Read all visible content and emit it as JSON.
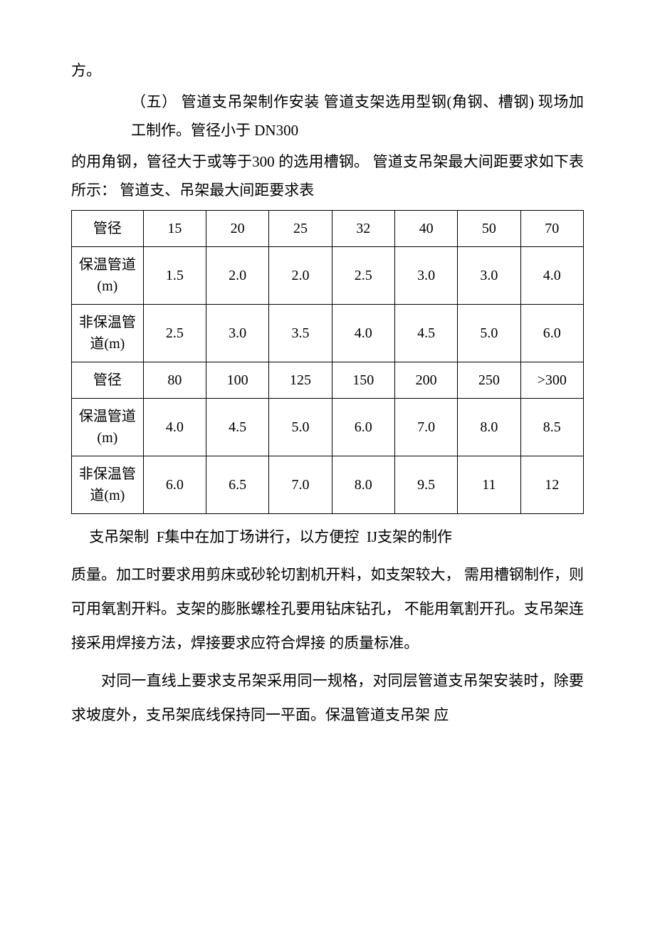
{
  "text": {
    "p0": "方。",
    "p1": "（五）  管道支吊架制作安装 管道支架选用型钢(角钢、槽钢) 现场加工制作。管径小于 DN300",
    "p2": "的用角钢，管径大于或等于300 的选用槽钢。 管道支吊架最大间距要求如下表所示：  管道支、吊架最大间距要求表",
    "p3a": "支吊架制",
    "p3b": "F集中在加丁场讲行，以方便控",
    "p3c": "IJ支架的制作",
    "p4": "质量。加工时要求用剪床或砂轮切割机开料，如支架较大， 需用槽钢制作，则可用氧割开料。支架的膨胀螺栓孔要用钻床钻孔， 不能用氧割开孔。支吊架连接采用焊接方法，焊接要求应符合焊接 的质量标准。",
    "p5": "对同一直线上要求支吊架采用同一规格，对同层管道支吊架安装时，除要求坡度外，支吊架底线保持同一平面。保温管道支吊架 应"
  },
  "table": {
    "rows": [
      {
        "label": "管径",
        "vals": [
          "15",
          "20",
          "25",
          "32",
          "40",
          "50",
          "70"
        ],
        "tall": false
      },
      {
        "label": "保温管道(m)",
        "vals": [
          "1.5",
          "2.0",
          "2.0",
          "2.5",
          "3.0",
          "3.0",
          "4.0"
        ],
        "tall": true
      },
      {
        "label": "非保温管道(m)",
        "vals": [
          "2.5",
          "3.0",
          "3.5",
          "4.0",
          "4.5",
          "5.0",
          "6.0"
        ],
        "tall": true
      },
      {
        "label": "管径",
        "vals": [
          "80",
          "100",
          "125",
          "150",
          "200",
          "250",
          ">300"
        ],
        "tall": false
      },
      {
        "label": "保温管道(m)",
        "vals": [
          "4.0",
          "4.5",
          "5.0",
          "6.0",
          "7.0",
          "8.0",
          "8.5"
        ],
        "tall": true
      },
      {
        "label": "非保温管道(m)",
        "vals": [
          "6.0",
          "6.5",
          "7.0",
          "8.0",
          "9.5",
          "11",
          "12"
        ],
        "tall": true
      }
    ]
  },
  "style": {
    "background_color": "#ffffff",
    "text_color": "#000000",
    "border_color": "#000000",
    "font_family": "SimSun",
    "body_fontsize": 21,
    "table_fontsize": 20
  }
}
